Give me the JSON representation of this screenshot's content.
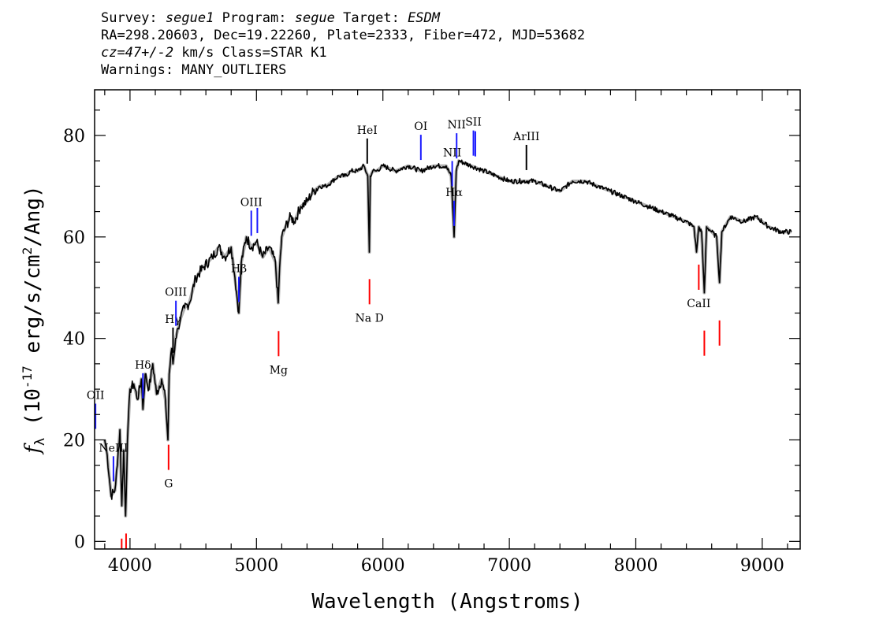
{
  "header": {
    "survey_label": "Survey:",
    "survey": "segue1",
    "program_label": "Program:",
    "program": "segue",
    "target_label": "Target:",
    "target": "ESDM",
    "line2": "RA=298.20603, Dec=19.22260, Plate=2333, Fiber=472, MJD=53682",
    "cz": "cz=47+/-2",
    "cz_units": "km/s Class=STAR K1",
    "warnings": "Warnings: MANY_OUTLIERS"
  },
  "chart_data": {
    "type": "line",
    "xlabel": "Wavelength (Angstroms)",
    "ylabel": "f_λ (10^-17 erg/s/cm^2/Ang)",
    "xlim": [
      3720,
      9300
    ],
    "ylim": [
      -1.5,
      89
    ],
    "xticks": [
      4000,
      5000,
      6000,
      7000,
      8000,
      9000
    ],
    "yticks": [
      0,
      20,
      40,
      60,
      80
    ],
    "grid": false,
    "series": [
      {
        "color": "#000000",
        "error_color": "#b0b0b0",
        "x": [
          3800,
          3820,
          3850,
          3880,
          3900,
          3920,
          3935,
          3950,
          3965,
          3980,
          4000,
          4030,
          4060,
          4090,
          4102,
          4120,
          4150,
          4180,
          4210,
          4250,
          4280,
          4300,
          4310,
          4330,
          4340,
          4360,
          4380,
          4400,
          4430,
          4470,
          4520,
          4580,
          4650,
          4700,
          4750,
          4800,
          4830,
          4861,
          4880,
          4920,
          4960,
          5000,
          5050,
          5100,
          5150,
          5172,
          5183,
          5200,
          5230,
          5270,
          5300,
          5350,
          5400,
          5450,
          5500,
          5550,
          5600,
          5650,
          5700,
          5750,
          5800,
          5850,
          5880,
          5893,
          5900,
          5920,
          5950,
          6000,
          6100,
          6200,
          6300,
          6400,
          6500,
          6540,
          6563,
          6580,
          6600,
          6700,
          6800,
          6900,
          7000,
          7100,
          7200,
          7300,
          7400,
          7500,
          7600,
          7700,
          7800,
          7900,
          8000,
          8100,
          8200,
          8300,
          8400,
          8460,
          8480,
          8498,
          8520,
          8542,
          8560,
          8600,
          8640,
          8662,
          8680,
          8750,
          8850,
          8950,
          9050,
          9150,
          9230
        ],
        "y": [
          20,
          17,
          9,
          10,
          15,
          22,
          7,
          18,
          5,
          20,
          30,
          31,
          28,
          32,
          26,
          33,
          30,
          35,
          29,
          32,
          28,
          20,
          33,
          38,
          35,
          40,
          42,
          44,
          46,
          47,
          52,
          54,
          56,
          58,
          56,
          58,
          52,
          45,
          55,
          60,
          58,
          59,
          56,
          58,
          55,
          47,
          54,
          60,
          62,
          64,
          63,
          66,
          67,
          69,
          70,
          70,
          71,
          72,
          72,
          73,
          73,
          74,
          72,
          57,
          72,
          73,
          73,
          74,
          73,
          74,
          73,
          74,
          74,
          72,
          60,
          73,
          75,
          74,
          73,
          72,
          71,
          71,
          71,
          70,
          69,
          71,
          71,
          70,
          69,
          68,
          67,
          66,
          65,
          64,
          63,
          62,
          57,
          62,
          61,
          49,
          62,
          61,
          60,
          51,
          61,
          64,
          63,
          64,
          62,
          61,
          61
        ]
      }
    ],
    "lines": [
      {
        "label": "OII",
        "wave": 3727,
        "color": "blue",
        "pos": "top"
      },
      {
        "label": "NeIII",
        "wave": 3869,
        "color": "blue",
        "pos": "top"
      },
      {
        "label": "Hδ",
        "wave": 4102,
        "color": "blue",
        "pos": "top"
      },
      {
        "label": "Hγ",
        "wave": 4340,
        "color": "black",
        "pos": "top"
      },
      {
        "label": "OIII",
        "wave": 4363,
        "color": "blue",
        "pos": "top"
      },
      {
        "label": "Hβ",
        "wave": 4861,
        "color": "blue",
        "pos": "top"
      },
      {
        "label": "OIII",
        "wave": 4959,
        "color": "blue",
        "pos": "top"
      },
      {
        "label": "",
        "wave": 5007,
        "color": "blue",
        "pos": "top"
      },
      {
        "label": "HeI",
        "wave": 5876,
        "color": "black",
        "pos": "top"
      },
      {
        "label": "OI",
        "wave": 6300,
        "color": "blue",
        "pos": "top"
      },
      {
        "label": "NII",
        "wave": 6548,
        "color": "blue",
        "pos": "top"
      },
      {
        "label": "Hα",
        "wave": 6563,
        "color": "blue",
        "pos": "top"
      },
      {
        "label": "NII",
        "wave": 6583,
        "color": "blue",
        "pos": "top"
      },
      {
        "label": "SII",
        "wave": 6716,
        "color": "blue",
        "pos": "top"
      },
      {
        "label": "",
        "wave": 6731,
        "color": "blue",
        "pos": "top"
      },
      {
        "label": "ArIII",
        "wave": 7135,
        "color": "black",
        "pos": "top"
      },
      {
        "label": "",
        "wave": 3934,
        "color": "red",
        "pos": "bottom"
      },
      {
        "label": "",
        "wave": 3969,
        "color": "red",
        "pos": "bottom"
      },
      {
        "label": "G",
        "wave": 4305,
        "color": "red",
        "pos": "bottom"
      },
      {
        "label": "Mg",
        "wave": 5175,
        "color": "red",
        "pos": "bottom"
      },
      {
        "label": "Na D",
        "wave": 5894,
        "color": "red",
        "pos": "bottom"
      },
      {
        "label": "CaII",
        "wave": 8498,
        "color": "red",
        "pos": "bottom"
      },
      {
        "label": "",
        "wave": 8542,
        "color": "red",
        "pos": "bottom"
      },
      {
        "label": "",
        "wave": 8662,
        "color": "red",
        "pos": "bottom"
      }
    ]
  }
}
